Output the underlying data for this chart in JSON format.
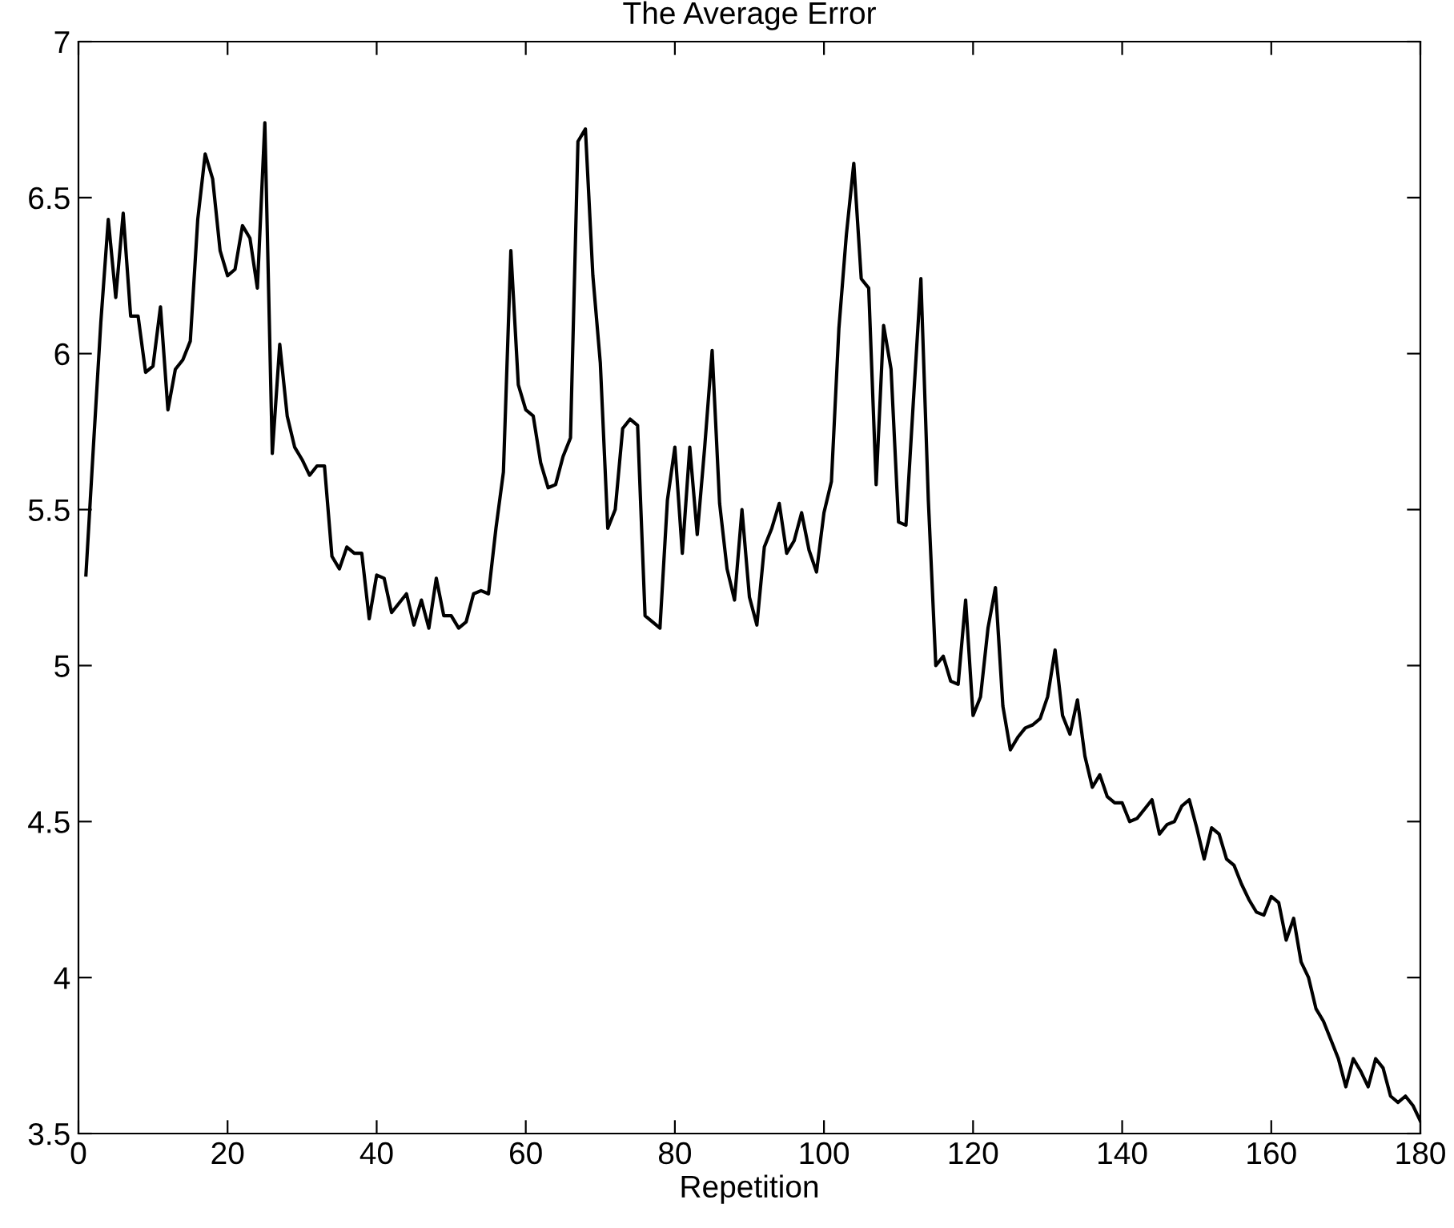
{
  "chart_data": {
    "type": "line",
    "title": "The Average Error",
    "xlabel": "Repetition",
    "xlim": [
      0,
      180
    ],
    "ylim": [
      3.5,
      7
    ],
    "xticks": [
      0,
      20,
      40,
      60,
      80,
      100,
      120,
      140,
      160,
      180
    ],
    "yticks": [
      3.5,
      4,
      4.5,
      5,
      5.5,
      6,
      6.5,
      7
    ],
    "grid": false,
    "legend": false,
    "series": [
      {
        "color": "#000000",
        "x": [
          1,
          2,
          3,
          4,
          5,
          6,
          7,
          8,
          9,
          10,
          11,
          12,
          13,
          14,
          15,
          16,
          17,
          18,
          19,
          20,
          21,
          22,
          23,
          24,
          25,
          26,
          27,
          28,
          29,
          30,
          31,
          32,
          33,
          34,
          35,
          36,
          37,
          38,
          39,
          40,
          41,
          42,
          43,
          44,
          45,
          46,
          47,
          48,
          49,
          50,
          51,
          52,
          53,
          54,
          55,
          56,
          57,
          58,
          59,
          60,
          61,
          62,
          63,
          64,
          65,
          66,
          67,
          68,
          69,
          70,
          71,
          72,
          73,
          74,
          75,
          76,
          77,
          78,
          79,
          80,
          81,
          82,
          83,
          84,
          85,
          86,
          87,
          88,
          89,
          90,
          91,
          92,
          93,
          94,
          95,
          96,
          97,
          98,
          99,
          100,
          101,
          102,
          103,
          104,
          105,
          106,
          107,
          108,
          109,
          110,
          111,
          112,
          113,
          114,
          115,
          116,
          117,
          118,
          119,
          120,
          121,
          122,
          123,
          124,
          125,
          126,
          127,
          128,
          129,
          130,
          131,
          132,
          133,
          134,
          135,
          136,
          137,
          138,
          139,
          140,
          141,
          142,
          143,
          144,
          145,
          146,
          147,
          148,
          149,
          150,
          151,
          152,
          153,
          154,
          155,
          156,
          157,
          158,
          159,
          160,
          161,
          162,
          163,
          164,
          165,
          166,
          167,
          168,
          169,
          170,
          171,
          172,
          173,
          174,
          175,
          176,
          177,
          178,
          179,
          180
        ],
        "values": [
          5.29,
          5.7,
          6.1,
          6.43,
          6.18,
          6.45,
          6.12,
          6.12,
          5.94,
          5.96,
          6.15,
          5.82,
          5.95,
          5.98,
          6.04,
          6.43,
          6.64,
          6.56,
          6.33,
          6.25,
          6.27,
          6.41,
          6.37,
          6.21,
          6.74,
          5.68,
          6.03,
          5.8,
          5.7,
          5.66,
          5.61,
          5.64,
          5.64,
          5.35,
          5.31,
          5.38,
          5.36,
          5.36,
          5.15,
          5.29,
          5.28,
          5.17,
          5.2,
          5.23,
          5.13,
          5.21,
          5.12,
          5.28,
          5.16,
          5.16,
          5.12,
          5.14,
          5.23,
          5.24,
          5.23,
          5.44,
          5.62,
          6.33,
          5.9,
          5.82,
          5.8,
          5.65,
          5.57,
          5.58,
          5.67,
          5.73,
          6.68,
          6.72,
          6.25,
          5.97,
          5.44,
          5.5,
          5.76,
          5.79,
          5.77,
          5.16,
          5.14,
          5.12,
          5.53,
          5.7,
          5.36,
          5.7,
          5.42,
          5.7,
          6.01,
          5.52,
          5.31,
          5.21,
          5.5,
          5.22,
          5.13,
          5.38,
          5.44,
          5.52,
          5.36,
          5.4,
          5.49,
          5.37,
          5.3,
          5.49,
          5.59,
          6.08,
          6.38,
          6.61,
          6.24,
          6.21,
          5.58,
          6.09,
          5.95,
          5.46,
          5.45,
          5.85,
          6.24,
          5.53,
          5.0,
          5.03,
          4.95,
          4.94,
          5.21,
          4.84,
          4.9,
          5.12,
          5.25,
          4.87,
          4.73,
          4.77,
          4.8,
          4.81,
          4.83,
          4.9,
          5.05,
          4.84,
          4.78,
          4.89,
          4.71,
          4.61,
          4.65,
          4.58,
          4.56,
          4.56,
          4.5,
          4.51,
          4.54,
          4.57,
          4.46,
          4.49,
          4.5,
          4.55,
          4.57,
          4.48,
          4.38,
          4.48,
          4.46,
          4.38,
          4.36,
          4.3,
          4.25,
          4.21,
          4.2,
          4.26,
          4.24,
          4.12,
          4.19,
          4.05,
          4.0,
          3.9,
          3.86,
          3.8,
          3.74,
          3.65,
          3.74,
          3.7,
          3.65,
          3.74,
          3.71,
          3.62,
          3.6,
          3.62,
          3.59,
          3.54
        ]
      }
    ]
  }
}
